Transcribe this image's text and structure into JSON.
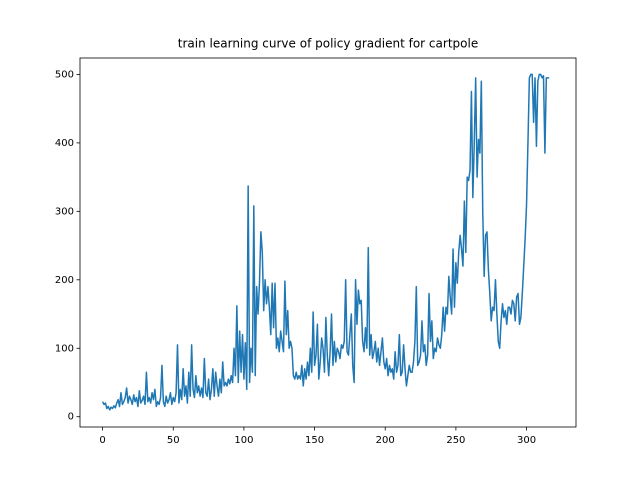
{
  "chart_data": {
    "type": "line",
    "title": "train learning curve of policy gradient for cartpole",
    "xlim": [
      -16,
      335
    ],
    "ylim": [
      -15,
      524
    ],
    "xticks": [
      0,
      50,
      100,
      150,
      200,
      250,
      300
    ],
    "yticks": [
      0,
      100,
      200,
      300,
      400,
      500
    ],
    "grid": false,
    "x": [
      0,
      1,
      2,
      3,
      4,
      5,
      6,
      7,
      8,
      9,
      10,
      11,
      12,
      13,
      14,
      15,
      16,
      17,
      18,
      19,
      20,
      21,
      22,
      23,
      24,
      25,
      26,
      27,
      28,
      29,
      30,
      31,
      32,
      33,
      34,
      35,
      36,
      37,
      38,
      39,
      40,
      41,
      42,
      43,
      44,
      45,
      46,
      47,
      48,
      49,
      50,
      51,
      52,
      53,
      54,
      55,
      56,
      57,
      58,
      59,
      60,
      61,
      62,
      63,
      64,
      65,
      66,
      67,
      68,
      69,
      70,
      71,
      72,
      73,
      74,
      75,
      76,
      77,
      78,
      79,
      80,
      81,
      82,
      83,
      84,
      85,
      86,
      87,
      88,
      89,
      90,
      91,
      92,
      93,
      94,
      95,
      96,
      97,
      98,
      99,
      100,
      101,
      102,
      103,
      104,
      105,
      106,
      107,
      108,
      109,
      110,
      111,
      112,
      113,
      114,
      115,
      116,
      117,
      118,
      119,
      120,
      121,
      122,
      123,
      124,
      125,
      126,
      127,
      128,
      129,
      130,
      131,
      132,
      133,
      134,
      135,
      136,
      137,
      138,
      139,
      140,
      141,
      142,
      143,
      144,
      145,
      146,
      147,
      148,
      149,
      150,
      151,
      152,
      153,
      154,
      155,
      156,
      157,
      158,
      159,
      160,
      161,
      162,
      163,
      164,
      165,
      166,
      167,
      168,
      169,
      170,
      171,
      172,
      173,
      174,
      175,
      176,
      177,
      178,
      179,
      180,
      181,
      182,
      183,
      184,
      185,
      186,
      187,
      188,
      189,
      190,
      191,
      192,
      193,
      194,
      195,
      196,
      197,
      198,
      199,
      200,
      201,
      202,
      203,
      204,
      205,
      206,
      207,
      208,
      209,
      210,
      211,
      212,
      213,
      214,
      215,
      216,
      217,
      218,
      219,
      220,
      221,
      222,
      223,
      224,
      225,
      226,
      227,
      228,
      229,
      230,
      231,
      232,
      233,
      234,
      235,
      236,
      237,
      238,
      239,
      240,
      241,
      242,
      243,
      244,
      245,
      246,
      247,
      248,
      249,
      250,
      251,
      252,
      253,
      254,
      255,
      256,
      257,
      258,
      259,
      260,
      261,
      262,
      263,
      264,
      265,
      266,
      267,
      268,
      269,
      270,
      271,
      272,
      273,
      274,
      275,
      276,
      277,
      278,
      279,
      280,
      281,
      282,
      283,
      284,
      285,
      286,
      287,
      288,
      289,
      290,
      291,
      292,
      293,
      294,
      295,
      296,
      297,
      298,
      299,
      300,
      301,
      302,
      303,
      304,
      305,
      306,
      307,
      308,
      309,
      310,
      311,
      312,
      313,
      314,
      315,
      316
    ],
    "series": [
      {
        "color": "#1f77b4",
        "values": [
          22,
          18,
          20,
          12,
          15,
          10,
          14,
          12,
          16,
          13,
          20,
          25,
          15,
          35,
          18,
          22,
          28,
          42,
          20,
          30,
          25,
          18,
          32,
          22,
          28,
          15,
          38,
          20,
          24,
          30,
          18,
          65,
          22,
          28,
          20,
          35,
          25,
          40,
          15,
          22,
          18,
          28,
          75,
          22,
          15,
          30,
          20,
          25,
          35,
          18,
          28,
          22,
          35,
          105,
          20,
          40,
          25,
          70,
          30,
          45,
          20,
          65,
          30,
          105,
          40,
          28,
          60,
          35,
          45,
          30,
          42,
          28,
          85,
          35,
          30,
          55,
          25,
          40,
          70,
          30,
          65,
          45,
          30,
          55,
          35,
          80,
          45,
          50,
          45,
          55,
          48,
          60,
          50,
          100,
          60,
          162,
          50,
          125,
          65,
          120,
          55,
          108,
          40,
          337,
          50,
          100,
          65,
          308,
          60,
          190,
          150,
          195,
          270,
          240,
          155,
          200,
          165,
          190,
          160,
          120,
          195,
          130,
          195,
          100,
          115,
          95,
          125,
          110,
          95,
          198,
          120,
          155,
          100,
          110,
          100,
          60,
          55,
          65,
          55,
          60,
          55,
          75,
          45,
          70,
          55,
          80,
          60,
          100,
          65,
          153,
          75,
          90,
          135,
          55,
          80,
          115,
          100,
          65,
          145,
          90,
          60,
          95,
          150,
          75,
          110,
          80,
          100,
          95,
          85,
          105,
          100,
          110,
          200,
          95,
          90,
          120,
          150,
          75,
          50,
          200,
          135,
          185,
          165,
          170,
          110,
          95,
          130,
          100,
          247,
          90,
          120,
          85,
          95,
          110,
          80,
          100,
          75,
          95,
          115,
          80,
          70,
          85,
          60,
          75,
          65,
          70,
          55,
          95,
          65,
          75,
          120,
          60,
          65,
          105,
          70,
          45,
          60,
          75,
          65,
          65,
          80,
          110,
          190,
          75,
          80,
          90,
          140,
          95,
          105,
          75,
          90,
          180,
          110,
          140,
          85,
          100,
          95,
          115,
          105,
          100,
          120,
          160,
          125,
          160,
          150,
          205,
          175,
          150,
          245,
          160,
          225,
          195,
          240,
          265,
          245,
          220,
          315,
          240,
          350,
          345,
          360,
          475,
          320,
          400,
          495,
          350,
          405,
          385,
          490,
          300,
          205,
          265,
          270,
          215,
          180,
          140,
          160,
          155,
          200,
          150,
          110,
          100,
          140,
          165,
          145,
          155,
          135,
          160,
          160,
          150,
          170,
          165,
          140,
          175,
          180,
          135,
          145,
          180,
          220,
          260,
          310,
          400,
          495,
          500,
          500,
          430,
          495,
          395,
          490,
          500,
          500,
          495,
          498,
          385,
          495,
          495,
          495
        ]
      }
    ]
  }
}
